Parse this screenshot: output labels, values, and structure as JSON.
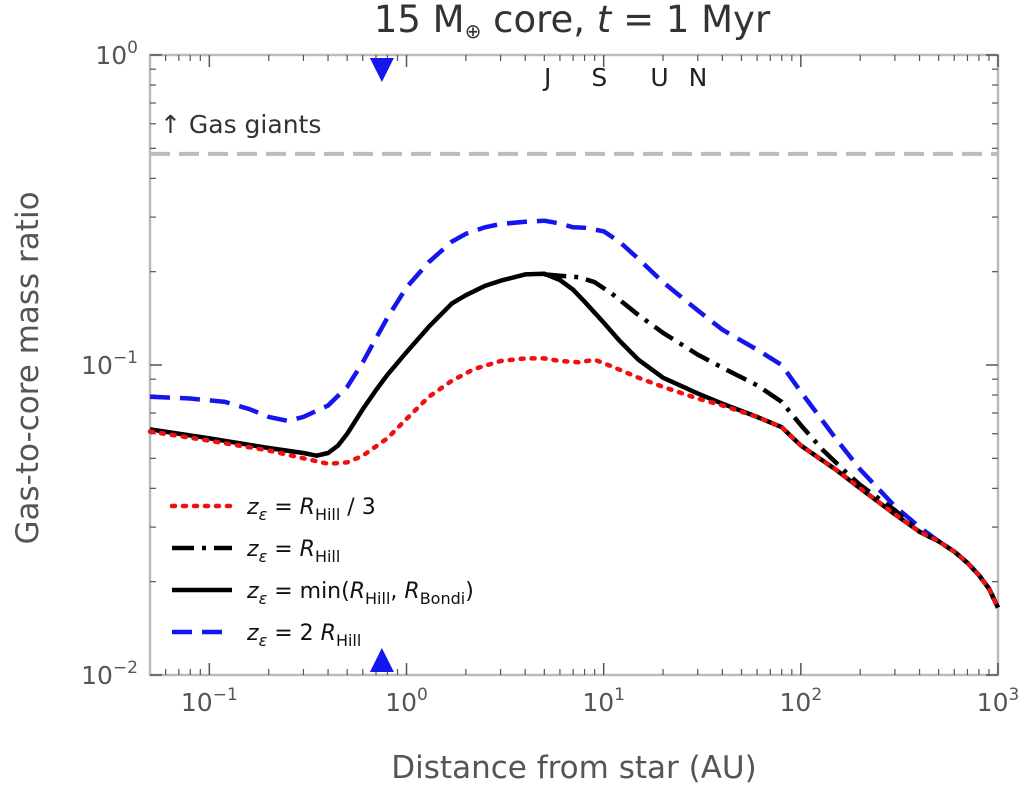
{
  "chart_data": {
    "type": "line",
    "title_parts": {
      "prefix": "15 M",
      "symbol": "⊕",
      "mid": " core, ",
      "var": "t",
      "suffix": " = 1 Myr"
    },
    "xlabel": "Distance from star (AU)",
    "ylabel": "Gas-to-core mass ratio",
    "xscale": "log",
    "yscale": "log",
    "xlim": [
      0.05,
      1000
    ],
    "ylim": [
      0.01,
      1
    ],
    "x_ticks": [
      {
        "value": 0.1,
        "base": "10",
        "exp": "−1"
      },
      {
        "value": 1,
        "base": "10",
        "exp": "0"
      },
      {
        "value": 10,
        "base": "10",
        "exp": "1"
      },
      {
        "value": 100,
        "base": "10",
        "exp": "2"
      },
      {
        "value": 1000,
        "base": "10",
        "exp": "3"
      }
    ],
    "y_ticks": [
      {
        "value": 0.01,
        "base": "10",
        "exp": "−2"
      },
      {
        "value": 0.1,
        "base": "10",
        "exp": "−1"
      },
      {
        "value": 1,
        "base": "10",
        "exp": "0"
      }
    ],
    "gas_giant_threshold": {
      "value": 0.48,
      "label": "↑ Gas giants",
      "color": "#bbbbbb"
    },
    "planets": [
      {
        "label": "J",
        "x": 5.2
      },
      {
        "label": "S",
        "x": 9.5
      },
      {
        "label": "U",
        "x": 19.2
      },
      {
        "label": "N",
        "x": 30.1
      }
    ],
    "marker": {
      "x": 0.75,
      "color": "#1515ee"
    },
    "series": [
      {
        "name": "R_Hill/3",
        "legend": {
          "pre": "z",
          "sub": "ε",
          "mid": " = ",
          "r": "R",
          "rsub": "Hill",
          "post": " / 3"
        },
        "color": "#ee1111",
        "style": "dotted",
        "points": [
          [
            0.05,
            0.061
          ],
          [
            0.1,
            0.057
          ],
          [
            0.2,
            0.053
          ],
          [
            0.3,
            0.05
          ],
          [
            0.4,
            0.048
          ],
          [
            0.5,
            0.0485
          ],
          [
            0.6,
            0.051
          ],
          [
            0.8,
            0.058
          ],
          [
            1.0,
            0.067
          ],
          [
            1.3,
            0.079
          ],
          [
            1.7,
            0.089
          ],
          [
            2.2,
            0.097
          ],
          [
            3.0,
            0.103
          ],
          [
            4.0,
            0.105
          ],
          [
            5.0,
            0.105
          ],
          [
            6.0,
            0.103
          ],
          [
            7.5,
            0.102
          ],
          [
            9.0,
            0.104
          ],
          [
            11,
            0.099
          ],
          [
            15,
            0.091
          ],
          [
            20,
            0.085
          ],
          [
            30,
            0.078
          ],
          [
            40,
            0.074
          ],
          [
            60,
            0.068
          ],
          [
            80,
            0.063
          ],
          [
            100,
            0.055
          ],
          [
            150,
            0.046
          ],
          [
            200,
            0.04
          ],
          [
            300,
            0.033
          ],
          [
            400,
            0.029
          ],
          [
            500,
            0.027
          ],
          [
            600,
            0.025
          ],
          [
            700,
            0.023
          ],
          [
            800,
            0.021
          ],
          [
            900,
            0.019
          ],
          [
            1000,
            0.0165
          ]
        ]
      },
      {
        "name": "R_Hill",
        "legend": {
          "pre": "z",
          "sub": "ε",
          "mid": " = ",
          "r": "R",
          "rsub": "Hill",
          "post": ""
        },
        "color": "#000000",
        "style": "dashdot",
        "points": [
          [
            5.0,
            0.196
          ],
          [
            6.0,
            0.194
          ],
          [
            7.5,
            0.192
          ],
          [
            9.0,
            0.185
          ],
          [
            11,
            0.17
          ],
          [
            15,
            0.145
          ],
          [
            20,
            0.127
          ],
          [
            30,
            0.108
          ],
          [
            40,
            0.098
          ],
          [
            60,
            0.086
          ],
          [
            80,
            0.076
          ],
          [
            100,
            0.064
          ],
          [
            130,
            0.053
          ],
          [
            170,
            0.045
          ],
          [
            200,
            0.041
          ],
          [
            300,
            0.034
          ],
          [
            400,
            0.029
          ],
          [
            500,
            0.027
          ],
          [
            600,
            0.025
          ],
          [
            700,
            0.023
          ],
          [
            800,
            0.021
          ],
          [
            900,
            0.019
          ],
          [
            1000,
            0.0165
          ]
        ]
      },
      {
        "name": "min(R_Hill, R_Bondi)",
        "legend": {
          "pre": "z",
          "sub": "ε",
          "mid": " = min(",
          "r": "R",
          "rsub": "Hill",
          "r2": "R",
          "r2sub": "Bondi",
          "post": ")"
        },
        "color": "#000000",
        "style": "solid",
        "points": [
          [
            0.05,
            0.062
          ],
          [
            0.1,
            0.058
          ],
          [
            0.2,
            0.054
          ],
          [
            0.3,
            0.052
          ],
          [
            0.35,
            0.051
          ],
          [
            0.4,
            0.052
          ],
          [
            0.45,
            0.055
          ],
          [
            0.5,
            0.06
          ],
          [
            0.6,
            0.072
          ],
          [
            0.7,
            0.083
          ],
          [
            0.8,
            0.093
          ],
          [
            1.0,
            0.11
          ],
          [
            1.3,
            0.133
          ],
          [
            1.7,
            0.158
          ],
          [
            2.0,
            0.168
          ],
          [
            2.5,
            0.18
          ],
          [
            3.0,
            0.187
          ],
          [
            4.0,
            0.196
          ],
          [
            5.0,
            0.197
          ],
          [
            6.0,
            0.188
          ],
          [
            7.0,
            0.175
          ],
          [
            8.0,
            0.16
          ],
          [
            10,
            0.137
          ],
          [
            12,
            0.12
          ],
          [
            15,
            0.104
          ],
          [
            20,
            0.091
          ],
          [
            30,
            0.081
          ],
          [
            40,
            0.075
          ],
          [
            60,
            0.068
          ],
          [
            80,
            0.063
          ],
          [
            100,
            0.055
          ],
          [
            150,
            0.046
          ],
          [
            200,
            0.04
          ],
          [
            300,
            0.033
          ],
          [
            400,
            0.029
          ],
          [
            500,
            0.027
          ],
          [
            600,
            0.025
          ],
          [
            700,
            0.023
          ],
          [
            800,
            0.021
          ],
          [
            900,
            0.019
          ],
          [
            1000,
            0.0165
          ]
        ]
      },
      {
        "name": "2 R_Hill",
        "legend": {
          "pre": "z",
          "sub": "ε",
          "mid": " = 2 ",
          "r": "R",
          "rsub": "Hill",
          "post": ""
        },
        "color": "#1515ee",
        "style": "dashed",
        "points": [
          [
            0.05,
            0.079
          ],
          [
            0.08,
            0.078
          ],
          [
            0.12,
            0.076
          ],
          [
            0.16,
            0.072
          ],
          [
            0.2,
            0.068
          ],
          [
            0.25,
            0.066
          ],
          [
            0.3,
            0.068
          ],
          [
            0.4,
            0.074
          ],
          [
            0.5,
            0.085
          ],
          [
            0.6,
            0.102
          ],
          [
            0.7,
            0.122
          ],
          [
            0.8,
            0.142
          ],
          [
            1.0,
            0.178
          ],
          [
            1.3,
            0.215
          ],
          [
            1.7,
            0.25
          ],
          [
            2.0,
            0.265
          ],
          [
            2.5,
            0.278
          ],
          [
            3.0,
            0.285
          ],
          [
            4.0,
            0.29
          ],
          [
            5.0,
            0.292
          ],
          [
            6.0,
            0.286
          ],
          [
            7.0,
            0.278
          ],
          [
            8.0,
            0.277
          ],
          [
            10,
            0.27
          ],
          [
            12,
            0.25
          ],
          [
            15,
            0.22
          ],
          [
            20,
            0.185
          ],
          [
            30,
            0.15
          ],
          [
            40,
            0.13
          ],
          [
            60,
            0.112
          ],
          [
            80,
            0.1
          ],
          [
            100,
            0.082
          ],
          [
            150,
            0.058
          ],
          [
            200,
            0.046
          ],
          [
            300,
            0.035
          ],
          [
            400,
            0.03
          ],
          [
            500,
            0.027
          ],
          [
            600,
            0.025
          ],
          [
            700,
            0.023
          ],
          [
            800,
            0.021
          ],
          [
            900,
            0.019
          ],
          [
            1000,
            0.0165
          ]
        ]
      }
    ]
  }
}
